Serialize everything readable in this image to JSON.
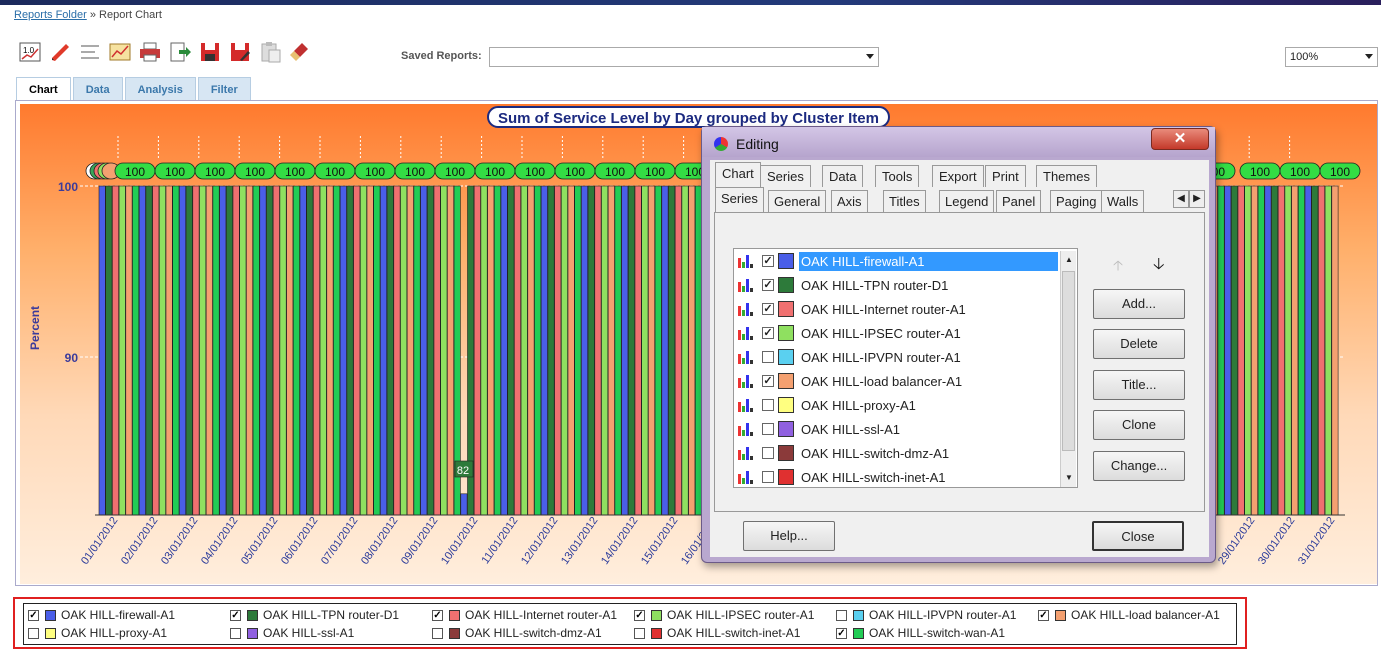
{
  "breadcrumb": {
    "link": "Reports Folder",
    "sep": "»",
    "current": "Report Chart"
  },
  "toolbar": {
    "icons": [
      "chart-gallery-icon",
      "pencil-icon",
      "align-icon",
      "edit-chart-icon",
      "print-icon",
      "export-icon",
      "save-icon",
      "save-as-icon",
      "paste-icon",
      "clear-icon"
    ]
  },
  "saved_reports": {
    "label": "Saved Reports:",
    "value": ""
  },
  "zoom": {
    "value": "100%"
  },
  "tabs": [
    "Chart",
    "Data",
    "Analysis",
    "Filter"
  ],
  "chart_data": {
    "type": "bar",
    "title": "Sum of Service Level by Day grouped by Cluster Item",
    "ylabel": "Percent",
    "yticks": [
      "100",
      "90"
    ],
    "ylim": [
      81,
      102
    ],
    "categories": [
      "01/01/2012",
      "02/01/2012",
      "03/01/2012",
      "04/01/2012",
      "05/01/2012",
      "06/01/2012",
      "07/01/2012",
      "08/01/2012",
      "09/01/2012",
      "10/01/2012",
      "11/01/2012",
      "12/01/2012",
      "13/01/2012",
      "14/01/2012",
      "15/01/2012",
      "16/01/2012",
      "29/01/2012",
      "30/01/2012",
      "31/01/2012"
    ],
    "series": [
      {
        "name": "OAK HILL-firewall-A1",
        "color": "#4a5ee8",
        "value": 100
      },
      {
        "name": "OAK HILL-TPN router-D1",
        "color": "#2d7a3a",
        "value": 100
      },
      {
        "name": "OAK HILL-Internet router-A1",
        "color": "#f07070",
        "value": 100
      },
      {
        "name": "OAK HILL-IPSEC router-A1",
        "color": "#8fe060",
        "value": 100
      },
      {
        "name": "OAK HILL-load balancer-A1",
        "color": "#f4a070",
        "value": 100
      },
      {
        "name": "OAK HILL-switch-wan-A1",
        "color": "#22cc55",
        "value": 100
      }
    ],
    "bar_labels": [
      "100",
      "100",
      "100",
      "100",
      "100",
      "100",
      "100",
      "100",
      "100",
      "100",
      "100",
      "100",
      "100",
      "100",
      "100"
    ],
    "outlier_label": "82",
    "outlier_value": 82
  },
  "legend": [
    {
      "label": "OAK HILL-firewall-A1",
      "checked": "✓",
      "color": "#4a5ee8"
    },
    {
      "label": "OAK HILL-TPN router-D1",
      "checked": "✓",
      "color": "#2d7a3a"
    },
    {
      "label": "OAK HILL-Internet router-A1",
      "checked": "✓",
      "color": "#f07070"
    },
    {
      "label": "OAK HILL-IPSEC router-A1",
      "checked": "✓",
      "color": "#8fe060"
    },
    {
      "label": "OAK HILL-IPVPN router-A1",
      "checked": "",
      "color": "#5ad0f0"
    },
    {
      "label": "OAK HILL-load balancer-A1",
      "checked": "✓",
      "color": "#f4a070"
    },
    {
      "label": "OAK HILL-proxy-A1",
      "checked": "",
      "color": "#ffff80"
    },
    {
      "label": "OAK HILL-ssl-A1",
      "checked": "",
      "color": "#9060e0"
    },
    {
      "label": "OAK HILL-switch-dmz-A1",
      "checked": "",
      "color": "#8b3a3a"
    },
    {
      "label": "OAK HILL-switch-inet-A1",
      "checked": "",
      "color": "#e03030"
    },
    {
      "label": "OAK HILL-switch-wan-A1",
      "checked": "✓",
      "color": "#22cc55"
    }
  ],
  "dialog": {
    "title": "Editing",
    "close_glyph": "✕",
    "top_tabs": [
      "Chart",
      "Series",
      "Data",
      "Tools",
      "Export",
      "Print",
      "Themes"
    ],
    "sub_tabs": [
      "Series",
      "General",
      "Axis",
      "Titles",
      "Legend",
      "Panel",
      "Paging",
      "Walls"
    ],
    "series_list": [
      {
        "label": "OAK HILL-firewall-A1",
        "checked": "✓",
        "color": "#4a5ee8"
      },
      {
        "label": "OAK HILL-TPN router-D1",
        "checked": "✓",
        "color": "#2d7a3a"
      },
      {
        "label": "OAK HILL-Internet router-A1",
        "checked": "✓",
        "color": "#f07070"
      },
      {
        "label": "OAK HILL-IPSEC router-A1",
        "checked": "✓",
        "color": "#8fe060"
      },
      {
        "label": "OAK HILL-IPVPN router-A1",
        "checked": "",
        "color": "#5ad0f0"
      },
      {
        "label": "OAK HILL-load balancer-A1",
        "checked": "✓",
        "color": "#f4a070"
      },
      {
        "label": "OAK HILL-proxy-A1",
        "checked": "",
        "color": "#ffff80"
      },
      {
        "label": "OAK HILL-ssl-A1",
        "checked": "",
        "color": "#9060e0"
      },
      {
        "label": "OAK HILL-switch-dmz-A1",
        "checked": "",
        "color": "#8b3a3a"
      },
      {
        "label": "OAK HILL-switch-inet-A1",
        "checked": "",
        "color": "#e03030"
      }
    ],
    "buttons": {
      "add": "Add...",
      "delete": "Delete",
      "title": "Title...",
      "clone": "Clone",
      "change": "Change...",
      "help": "Help...",
      "close": "Close"
    }
  }
}
